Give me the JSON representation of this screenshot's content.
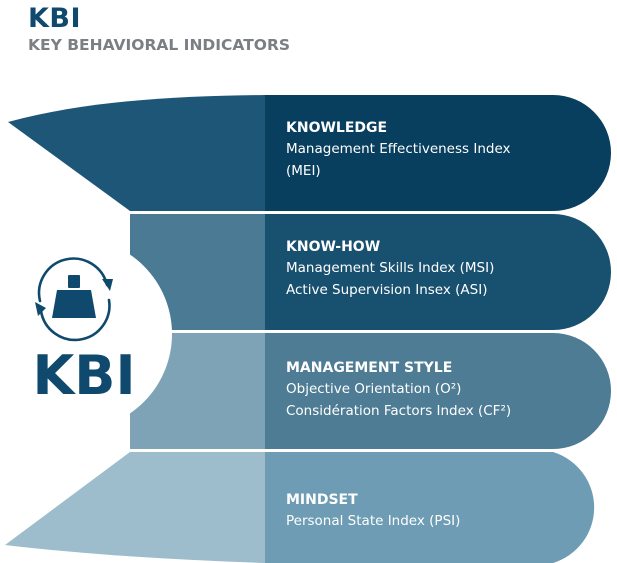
{
  "header": {
    "title": "KBI",
    "subtitle": "KEY BEHAVIORAL INDICATORS"
  },
  "hub": {
    "label": "KBI",
    "icon": "person-cycle-icon"
  },
  "bands": [
    {
      "title": "KNOWLEDGE",
      "lines": [
        "Management Effectiveness Index",
        "(MEI)"
      ],
      "color_left": "#1d5677",
      "color_right": "#083e5e"
    },
    {
      "title": "KNOW-HOW",
      "lines": [
        "Management Skills Index (MSI)",
        "Active Supervision Insex (ASI)"
      ],
      "color_left": "#4b7a95",
      "color_right": "#18506f"
    },
    {
      "title": "MANAGEMENT STYLE",
      "lines": [
        "Objective Orientation (O²)",
        "Considération Factors Index (CF²)"
      ],
      "color_left": "#7ea3b7",
      "color_right": "#4e7c95"
    },
    {
      "title": "MINDSET",
      "lines": [
        "Personal State Index (PSI)"
      ],
      "color_left": "#9dbccc",
      "color_right": "#6d9cb4"
    }
  ]
}
